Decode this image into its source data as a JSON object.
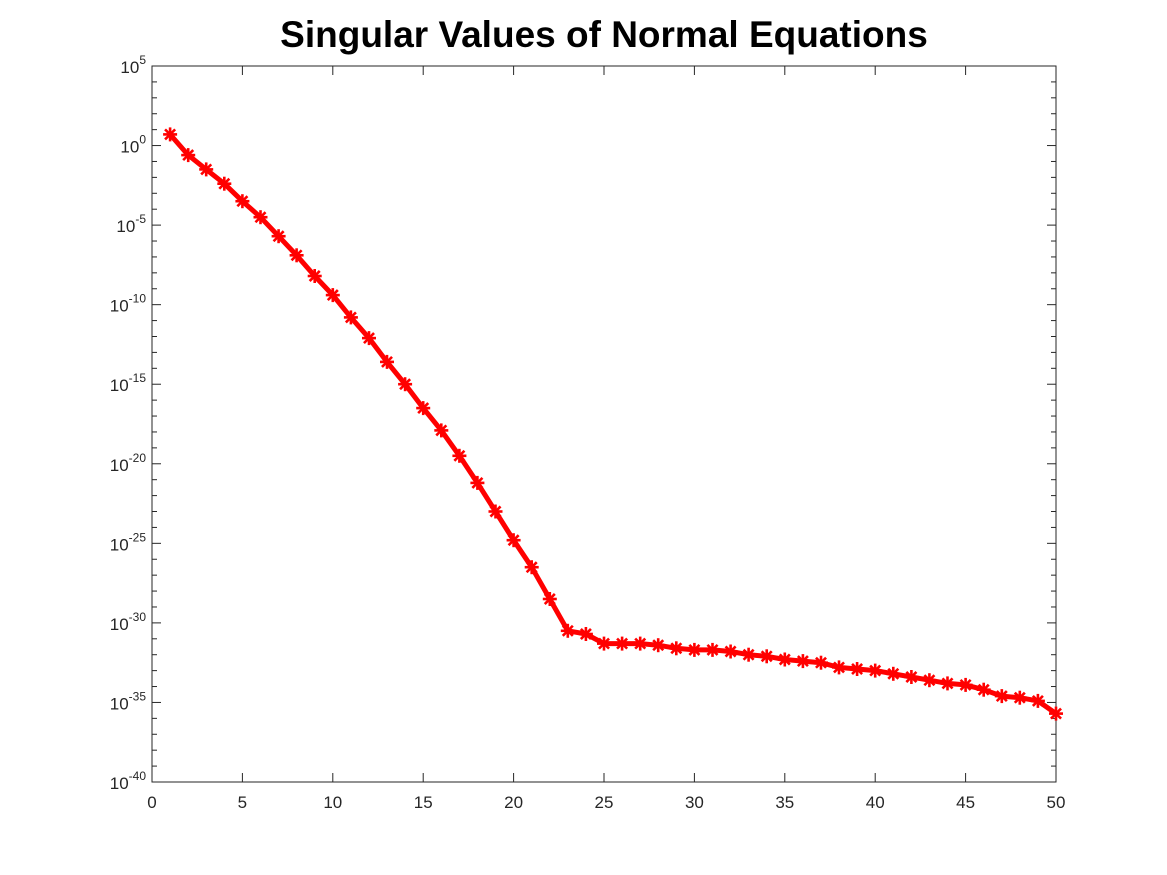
{
  "chart_data": {
    "type": "line",
    "title": "Singular Values of Normal Equations",
    "xlabel": "",
    "ylabel": "",
    "xlim": [
      0,
      50
    ],
    "ylim_log10": [
      -40,
      5
    ],
    "y_scale": "log",
    "grid": false,
    "x_ticks": [
      0,
      5,
      10,
      15,
      20,
      25,
      30,
      35,
      40,
      45,
      50
    ],
    "y_tick_exponents": [
      5,
      0,
      -5,
      -10,
      -15,
      -20,
      -25,
      -30,
      -35,
      -40
    ],
    "y_tick_base": "10",
    "series": [
      {
        "color": "#ff0000",
        "marker": "asterisk",
        "x": [
          1,
          2,
          3,
          4,
          5,
          6,
          7,
          8,
          9,
          10,
          11,
          12,
          13,
          14,
          15,
          16,
          17,
          18,
          19,
          20,
          21,
          22,
          23,
          24,
          25,
          26,
          27,
          28,
          29,
          30,
          31,
          32,
          33,
          34,
          35,
          36,
          37,
          38,
          39,
          40,
          41,
          42,
          43,
          44,
          45,
          46,
          47,
          48,
          49,
          50
        ],
        "log10_y": [
          0.7,
          -0.6,
          -1.5,
          -2.4,
          -3.5,
          -4.5,
          -5.7,
          -6.9,
          -8.2,
          -9.4,
          -10.8,
          -12.1,
          -13.6,
          -15.0,
          -16.5,
          -17.9,
          -19.5,
          -21.2,
          -23.0,
          -24.8,
          -26.5,
          -28.5,
          -30.5,
          -30.7,
          -31.3,
          -31.3,
          -31.3,
          -31.4,
          -31.6,
          -31.7,
          -31.7,
          -31.8,
          -32.0,
          -32.1,
          -32.3,
          -32.4,
          -32.5,
          -32.8,
          -32.9,
          -33.0,
          -33.2,
          -33.4,
          -33.6,
          -33.8,
          -33.9,
          -34.2,
          -34.6,
          -34.7,
          -34.9,
          -35.7
        ]
      }
    ]
  }
}
